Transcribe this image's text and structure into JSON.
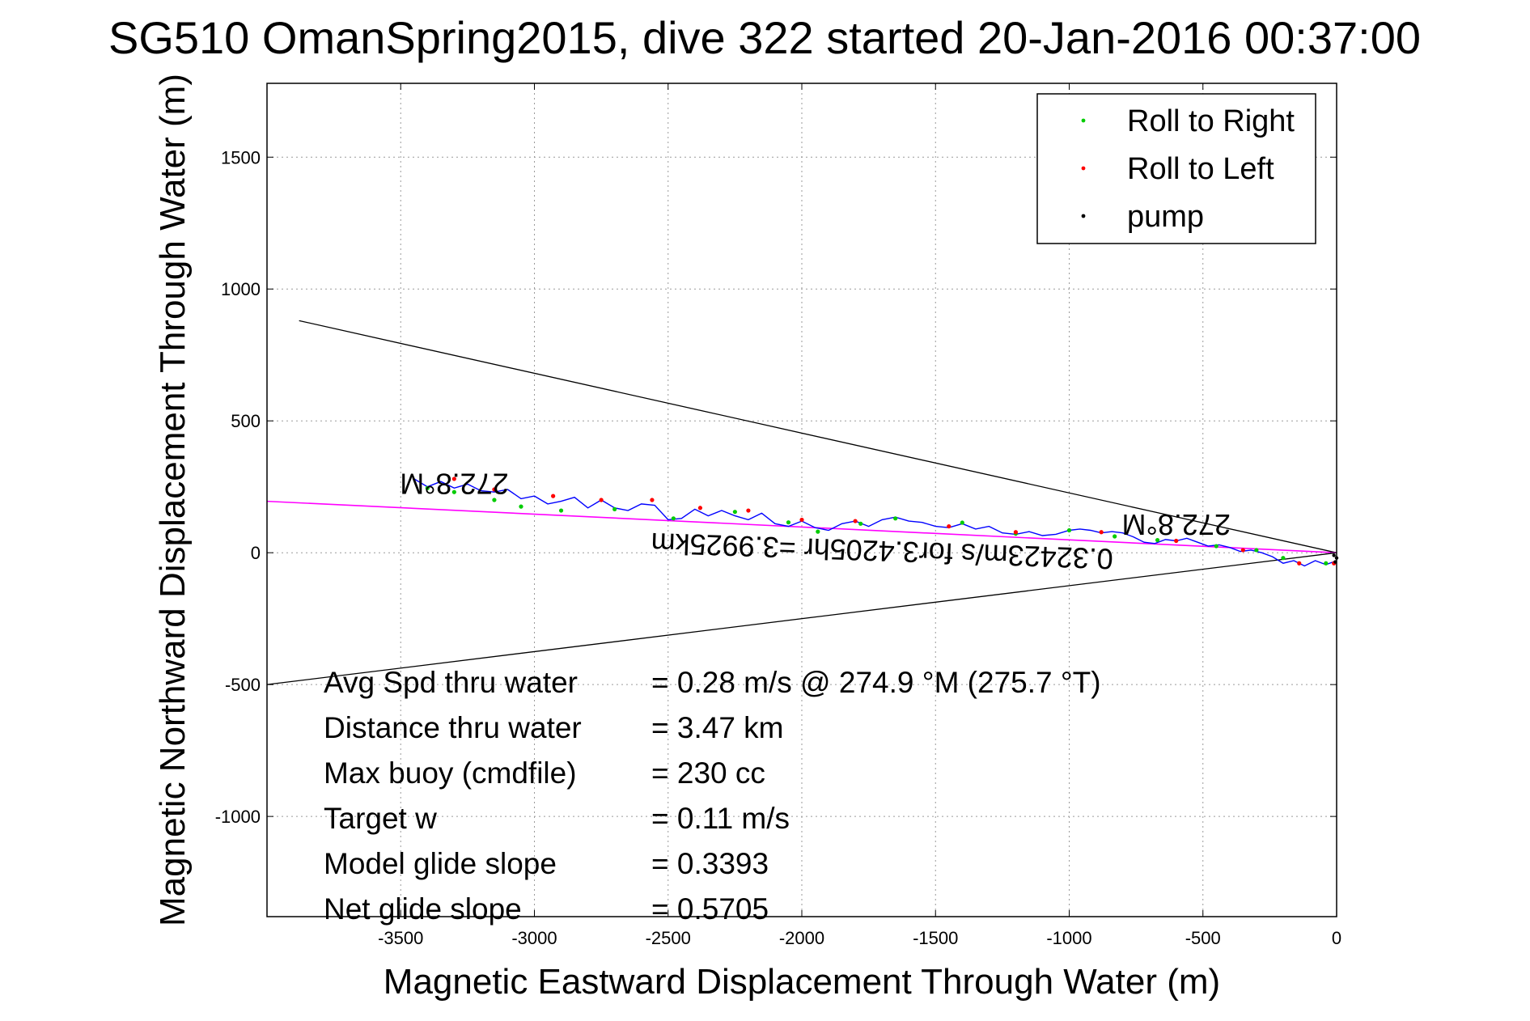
{
  "chart_data": {
    "type": "scatter",
    "title": "SG510 OmanSpring2015, dive 322 started 20-Jan-2016 00:37:00",
    "xlabel": "Magnetic Eastward Displacement Through Water (m)",
    "ylabel": "Magnetic Northward Displacement Through Water (m)",
    "xlim": [
      -4000,
      0
    ],
    "ylim": [
      -1380,
      1780
    ],
    "xticks": [
      -3500,
      -3000,
      -2500,
      -2000,
      -1500,
      -1000,
      -500,
      0
    ],
    "yticks": [
      -1000,
      -500,
      0,
      500,
      1000,
      1500
    ],
    "grid": true,
    "legend_position": "top-right",
    "legend": [
      {
        "label": "Roll to Right",
        "color": "#00cc00"
      },
      {
        "label": "Roll to Left",
        "color": "#ff0000"
      },
      {
        "label": "pump",
        "color": "#000000"
      }
    ],
    "colors": {
      "track": "#0000ff",
      "heading_line": "#ff00ff",
      "cone": "#000000",
      "roll_right": "#00cc00",
      "roll_left": "#ff0000",
      "pump": "#000000"
    },
    "track": {
      "x": [
        0,
        -40,
        -80,
        -120,
        -160,
        -200,
        -240,
        -280,
        -320,
        -360,
        -400,
        -440,
        -480,
        -520,
        -560,
        -600,
        -640,
        -680,
        -720,
        -760,
        -800,
        -840,
        -880,
        -920,
        -960,
        -1000,
        -1050,
        -1100,
        -1150,
        -1200,
        -1250,
        -1300,
        -1350,
        -1400,
        -1450,
        -1500,
        -1550,
        -1600,
        -1650,
        -1700,
        -1750,
        -1800,
        -1850,
        -1900,
        -1950,
        -2000,
        -2050,
        -2100,
        -2150,
        -2200,
        -2250,
        -2300,
        -2350,
        -2400,
        -2450,
        -2500,
        -2550,
        -2600,
        -2650,
        -2700,
        -2750,
        -2800,
        -2850,
        -2900,
        -2950,
        -3000,
        -3050,
        -3100,
        -3150,
        -3200,
        -3250,
        -3300,
        -3350,
        -3400,
        -3450
      ],
      "y": [
        -30,
        -45,
        -30,
        -50,
        -30,
        -40,
        -15,
        0,
        10,
        5,
        20,
        30,
        25,
        40,
        55,
        45,
        50,
        35,
        40,
        60,
        75,
        80,
        75,
        85,
        90,
        85,
        70,
        65,
        80,
        70,
        75,
        100,
        90,
        110,
        95,
        100,
        115,
        120,
        135,
        125,
        100,
        120,
        110,
        85,
        95,
        120,
        100,
        110,
        150,
        125,
        140,
        160,
        140,
        165,
        130,
        125,
        180,
        185,
        160,
        170,
        200,
        170,
        210,
        195,
        185,
        215,
        205,
        240,
        230,
        235,
        260,
        245,
        270,
        250,
        280
      ]
    },
    "roll_right": {
      "x": [
        -40,
        -200,
        -300,
        -450,
        -670,
        -830,
        -1000,
        -1200,
        -1400,
        -1650,
        -1780,
        -1940,
        -2050,
        -2250,
        -2480,
        -2700,
        -2900,
        -3050,
        -3150,
        -3300,
        -3400
      ],
      "y": [
        -40,
        -20,
        10,
        25,
        48,
        62,
        85,
        72,
        114,
        130,
        110,
        80,
        115,
        155,
        130,
        165,
        160,
        175,
        200,
        230,
        245
      ]
    },
    "roll_left": {
      "x": [
        -10,
        -140,
        -350,
        -600,
        -880,
        -1200,
        -1450,
        -1800,
        -2000,
        -2200,
        -2380,
        -2560,
        -2750,
        -2930,
        -3150,
        -3300
      ],
      "y": [
        -40,
        -40,
        10,
        45,
        78,
        78,
        100,
        120,
        125,
        160,
        170,
        200,
        200,
        215,
        240,
        280
      ]
    },
    "pump": {
      "x": [
        0,
        -5,
        -10
      ],
      "y": [
        -20,
        -35,
        -10
      ]
    },
    "heading_line": {
      "x": [
        -4000,
        0
      ],
      "y": [
        195,
        0
      ]
    },
    "cone_lines": [
      {
        "x": [
          -3880,
          0
        ],
        "y": [
          880,
          0
        ]
      },
      {
        "x": [
          -4000,
          0
        ],
        "y": [
          -500,
          0
        ]
      }
    ],
    "heading_labels": [
      {
        "text": "272.8°M",
        "x": -3300,
        "y": 270
      },
      {
        "text": "272.8°M",
        "x": -600,
        "y": 115
      }
    ],
    "speed_label": {
      "text": "0.32423m/s for3.4205hr =3.9925km",
      "x": -1700,
      "y": 15
    },
    "annotations": [
      {
        "label": "Avg Spd thru water",
        "value": "=  0.28 m/s @ 274.9 °M (275.7 °T)"
      },
      {
        "label": "Distance thru water",
        "value": "=  3.47 km"
      },
      {
        "label": "Max buoy (cmdfile)",
        "value": "= 230 cc"
      },
      {
        "label": "Target w",
        "value": "= 0.11 m/s"
      },
      {
        "label": "Model glide slope",
        "value": "= 0.3393"
      },
      {
        "label": "Net glide slope",
        "value": "= 0.5705"
      }
    ]
  }
}
